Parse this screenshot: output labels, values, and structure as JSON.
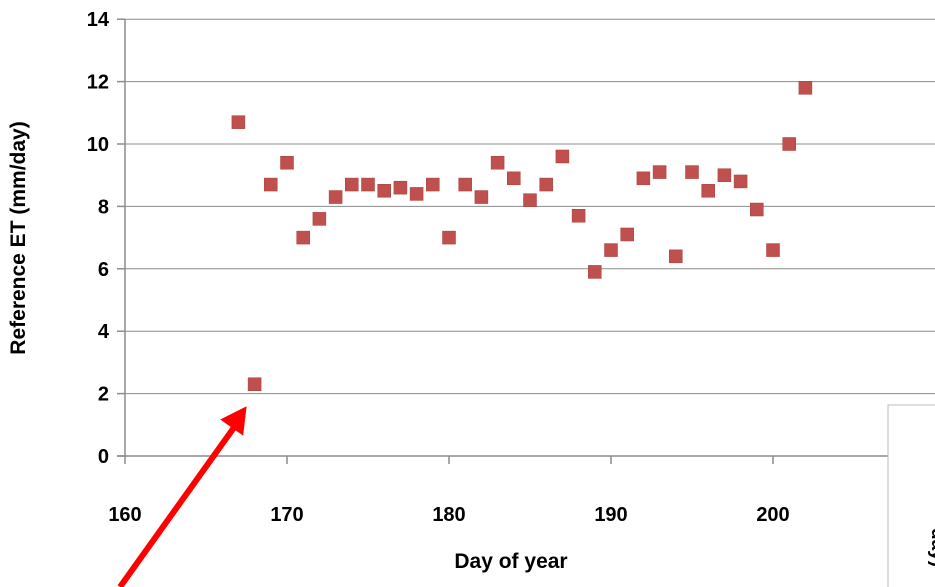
{
  "chart_data": {
    "type": "scatter",
    "title": "",
    "xlabel": "Day of year",
    "ylabel": "Reference ET (mm/day)",
    "xlim": [
      160,
      208
    ],
    "ylim": [
      0,
      14
    ],
    "x_ticks": [
      160,
      170,
      180,
      190,
      200
    ],
    "y_ticks": [
      0,
      2,
      4,
      6,
      8,
      10,
      12,
      14
    ],
    "grid": "horizontal",
    "marker_color": "#c0504d",
    "arrow_color": "#ff0000",
    "clipped_panel_label": "day)",
    "series": [
      {
        "values": [
          [
            167,
            10.7
          ],
          [
            168,
            2.3
          ],
          [
            169,
            8.7
          ],
          [
            170,
            9.4
          ],
          [
            171,
            7.0
          ],
          [
            172,
            7.6
          ],
          [
            173,
            8.3
          ],
          [
            174,
            8.7
          ],
          [
            175,
            8.7
          ],
          [
            176,
            8.5
          ],
          [
            177,
            8.6
          ],
          [
            178,
            8.4
          ],
          [
            179,
            8.7
          ],
          [
            180,
            7.0
          ],
          [
            181,
            8.7
          ],
          [
            182,
            8.3
          ],
          [
            183,
            9.4
          ],
          [
            184,
            8.9
          ],
          [
            185,
            8.2
          ],
          [
            186,
            8.7
          ],
          [
            187,
            9.6
          ],
          [
            188,
            7.7
          ],
          [
            189,
            5.9
          ],
          [
            190,
            6.6
          ],
          [
            191,
            7.1
          ],
          [
            192,
            8.9
          ],
          [
            193,
            9.1
          ],
          [
            194,
            6.4
          ],
          [
            195,
            9.1
          ],
          [
            196,
            8.5
          ],
          [
            197,
            9.0
          ],
          [
            198,
            8.8
          ],
          [
            199,
            7.9
          ],
          [
            200,
            6.6
          ],
          [
            201,
            10.0
          ],
          [
            202,
            11.8
          ]
        ]
      }
    ],
    "annotation": {
      "type": "arrow",
      "target": [
        168,
        2.3
      ]
    }
  }
}
